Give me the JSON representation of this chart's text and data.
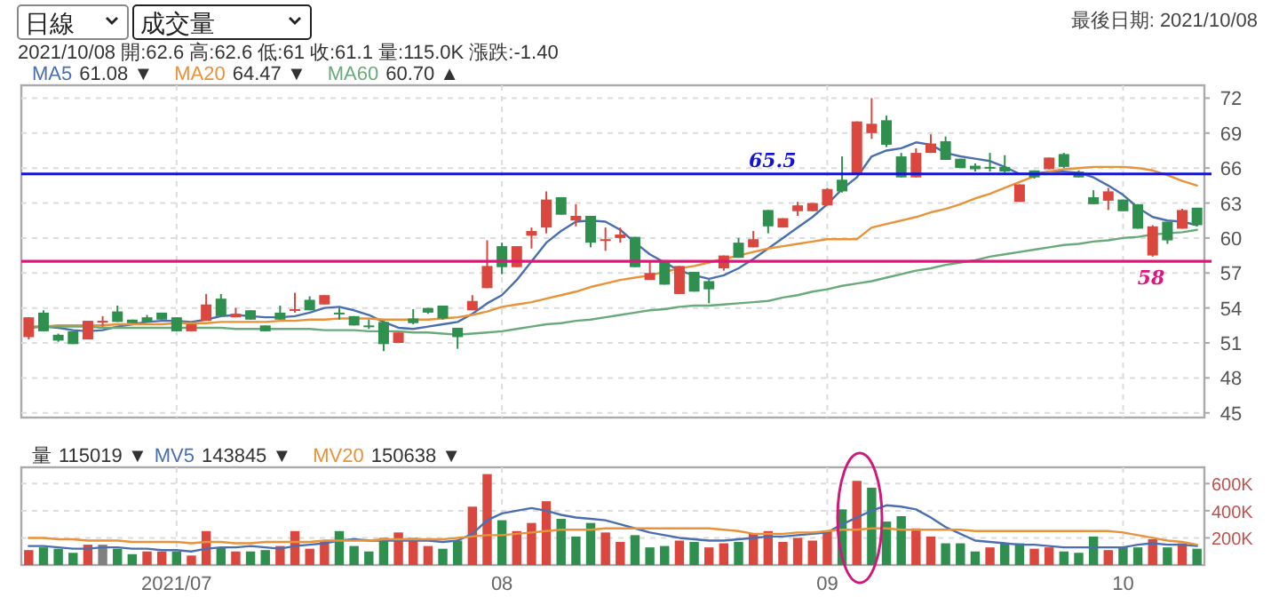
{
  "chart_data": [
    {
      "type": "candlestick",
      "legend": "top left",
      "grid": true,
      "tick_labels": "y",
      "categories": [
        null,
        null,
        null,
        null,
        null,
        null,
        null,
        null,
        null,
        null,
        "2021/07",
        null,
        null,
        null,
        null,
        null,
        null,
        null,
        null,
        null,
        null,
        null,
        null,
        null,
        null,
        null,
        null,
        null,
        null,
        null,
        null,
        null,
        "08",
        null,
        null,
        null,
        null,
        null,
        null,
        null,
        null,
        null,
        null,
        null,
        null,
        null,
        null,
        null,
        null,
        null,
        null,
        null,
        null,
        null,
        "09",
        null,
        null,
        null,
        null,
        null,
        null,
        null,
        null,
        null,
        null,
        null,
        null,
        null,
        null,
        null,
        null,
        null,
        null,
        null,
        "10",
        null,
        null,
        null,
        null,
        null
      ],
      "ohlc": [
        [
          51.5,
          53.2,
          51.3,
          53.2
        ],
        [
          53.6,
          53.8,
          52.0,
          52.0
        ],
        [
          51.7,
          51.8,
          51.1,
          51.2
        ],
        [
          52.0,
          52.0,
          50.9,
          50.9
        ],
        [
          51.3,
          52.9,
          51.3,
          52.9
        ],
        [
          52.8,
          53.3,
          52.4,
          52.9
        ],
        [
          53.7,
          54.2,
          52.8,
          52.8
        ],
        [
          53.0,
          53.0,
          52.7,
          52.7
        ],
        [
          53.2,
          53.4,
          52.8,
          52.8
        ],
        [
          53.6,
          53.6,
          53.0,
          53.0
        ],
        [
          53.2,
          53.2,
          52.0,
          52.0
        ],
        [
          52.0,
          52.6,
          52.0,
          52.6
        ],
        [
          52.9,
          55.2,
          52.9,
          54.3
        ],
        [
          54.8,
          55.2,
          53.3,
          53.3
        ],
        [
          53.2,
          54.0,
          53.2,
          53.5
        ],
        [
          53.8,
          53.8,
          53.0,
          53.0
        ],
        [
          52.5,
          52.5,
          52.0,
          52.0
        ],
        [
          53.6,
          54.2,
          53.0,
          53.0
        ],
        [
          53.8,
          55.3,
          53.6,
          53.9
        ],
        [
          54.7,
          55.0,
          53.8,
          53.8
        ],
        [
          54.3,
          55.1,
          54.3,
          55.1
        ],
        [
          53.6,
          54.0,
          53.0,
          53.5
        ],
        [
          53.3,
          53.3,
          52.5,
          52.5
        ],
        [
          52.5,
          53.0,
          52.2,
          52.4
        ],
        [
          52.8,
          52.9,
          50.3,
          50.9
        ],
        [
          51.0,
          51.9,
          51.0,
          51.9
        ],
        [
          53.1,
          53.9,
          52.6,
          52.7
        ],
        [
          54.0,
          54.0,
          53.5,
          53.6
        ],
        [
          54.2,
          54.2,
          53.0,
          53.1
        ],
        [
          52.3,
          52.3,
          50.5,
          51.5
        ],
        [
          53.8,
          55.1,
          53.8,
          54.6
        ],
        [
          55.7,
          59.8,
          55.7,
          57.6
        ],
        [
          59.3,
          59.6,
          56.9,
          57.5
        ],
        [
          57.5,
          59.3,
          57.5,
          59.3
        ],
        [
          60.2,
          60.9,
          59.1,
          60.6
        ],
        [
          60.9,
          64.0,
          60.4,
          63.3
        ],
        [
          63.5,
          63.5,
          62.0,
          62.0
        ],
        [
          61.5,
          62.9,
          61.0,
          61.9
        ],
        [
          61.9,
          61.9,
          59.2,
          59.6
        ],
        [
          59.8,
          60.9,
          58.9,
          59.9
        ],
        [
          60.0,
          60.9,
          59.6,
          60.3
        ],
        [
          60.1,
          60.1,
          57.5,
          57.5
        ],
        [
          56.4,
          58.0,
          56.4,
          57.0
        ],
        [
          58.1,
          58.1,
          56.0,
          56.0
        ],
        [
          55.2,
          57.6,
          55.2,
          57.6
        ],
        [
          57.1,
          57.1,
          55.4,
          55.4
        ],
        [
          56.3,
          56.4,
          54.4,
          55.6
        ],
        [
          57.4,
          58.5,
          57.2,
          58.5
        ],
        [
          59.6,
          60.0,
          58.3,
          58.3
        ],
        [
          59.2,
          60.6,
          59.2,
          59.9
        ],
        [
          62.4,
          62.4,
          60.4,
          61.0
        ],
        [
          60.9,
          61.7,
          60.9,
          61.7
        ],
        [
          62.3,
          63.1,
          61.9,
          62.8
        ],
        [
          62.3,
          63.0,
          62.3,
          63.0
        ],
        [
          62.8,
          64.3,
          62.8,
          64.2
        ],
        [
          65.0,
          67.0,
          63.9,
          64.0
        ],
        [
          65.5,
          70.0,
          65.5,
          70.0
        ],
        [
          69.0,
          72.0,
          68.5,
          69.8
        ],
        [
          70.1,
          70.5,
          67.8,
          68.0
        ],
        [
          67.0,
          67.3,
          65.2,
          65.2
        ],
        [
          65.2,
          67.7,
          65.2,
          67.3
        ],
        [
          67.3,
          68.9,
          67.3,
          68.1
        ],
        [
          68.3,
          68.7,
          66.7,
          66.7
        ],
        [
          66.8,
          66.8,
          66.0,
          66.0
        ],
        [
          66.2,
          66.4,
          65.7,
          65.9
        ],
        [
          66.1,
          67.3,
          65.7,
          66.0
        ],
        [
          66.1,
          67.1,
          65.6,
          65.7
        ],
        [
          63.1,
          64.6,
          63.1,
          64.6
        ],
        [
          65.8,
          65.8,
          65.1,
          65.2
        ],
        [
          65.9,
          66.9,
          65.9,
          66.9
        ],
        [
          67.2,
          67.3,
          66.0,
          66.1
        ],
        [
          65.7,
          65.8,
          65.2,
          65.2
        ],
        [
          63.5,
          64.1,
          62.9,
          62.9
        ],
        [
          63.2,
          64.3,
          62.4,
          64.0
        ],
        [
          63.3,
          63.3,
          62.3,
          62.3
        ],
        [
          62.9,
          62.9,
          60.8,
          60.8
        ],
        [
          58.5,
          61.1,
          58.4,
          61.0
        ],
        [
          61.4,
          61.4,
          59.5,
          59.8
        ],
        [
          60.8,
          62.5,
          60.8,
          62.4
        ],
        [
          62.6,
          62.6,
          61.0,
          61.1
        ]
      ],
      "colors": [
        "#d9473f",
        "#2f8f4e",
        "#2f8f4e",
        "#2f8f4e",
        "#d9473f",
        "#d9473f",
        "#2f8f4e",
        "#2f8f4e",
        "#2f8f4e",
        "#2f8f4e",
        "#2f8f4e",
        "#d9473f",
        "#d9473f",
        "#2f8f4e",
        "#d9473f",
        "#2f8f4e",
        "#2f8f4e",
        "#2f8f4e",
        "#d9473f",
        "#2f8f4e",
        "#d9473f",
        "#2f8f4e",
        "#2f8f4e",
        "#2f8f4e",
        "#2f8f4e",
        "#d9473f",
        "#2f8f4e",
        "#2f8f4e",
        "#2f8f4e",
        "#2f8f4e",
        "#d9473f",
        "#d9473f",
        "#2f8f4e",
        "#d9473f",
        "#d9473f",
        "#d9473f",
        "#2f8f4e",
        "#d9473f",
        "#2f8f4e",
        "#d9473f",
        "#d9473f",
        "#2f8f4e",
        "#d9473f",
        "#2f8f4e",
        "#d9473f",
        "#2f8f4e",
        "#2f8f4e",
        "#d9473f",
        "#2f8f4e",
        "#d9473f",
        "#2f8f4e",
        "#d9473f",
        "#d9473f",
        "#d9473f",
        "#d9473f",
        "#2f8f4e",
        "#d9473f",
        "#d9473f",
        "#2f8f4e",
        "#2f8f4e",
        "#d9473f",
        "#d9473f",
        "#2f8f4e",
        "#2f8f4e",
        "#2f8f4e",
        "#2f8f4e",
        "#2f8f4e",
        "#d9473f",
        "#2f8f4e",
        "#d9473f",
        "#2f8f4e",
        "#2f8f4e",
        "#2f8f4e",
        "#d9473f",
        "#2f8f4e",
        "#2f8f4e",
        "#d9473f",
        "#2f8f4e",
        "#d9473f",
        "#2f8f4e"
      ],
      "series": [
        {
          "name": "MA5",
          "type": "line",
          "color": "#4a6fb0",
          "values": [
            52.3,
            52.4,
            52.3,
            52.1,
            52.0,
            52.1,
            52.4,
            52.6,
            52.8,
            52.9,
            52.9,
            52.8,
            53.0,
            53.3,
            53.4,
            53.3,
            53.2,
            53.2,
            53.3,
            53.6,
            54.0,
            54.1,
            53.8,
            53.4,
            52.8,
            52.3,
            52.2,
            52.4,
            52.6,
            52.8,
            53.5,
            54.4,
            55.1,
            56.4,
            58.0,
            59.6,
            60.6,
            61.4,
            61.5,
            61.4,
            60.7,
            59.6,
            58.6,
            57.9,
            57.2,
            56.8,
            56.5,
            56.8,
            57.4,
            58.2,
            59.1,
            60.0,
            60.9,
            61.8,
            62.9,
            64.2,
            65.2,
            67.0,
            67.5,
            67.7,
            68.2,
            68.0,
            67.3,
            67.0,
            66.8,
            66.6,
            66.1,
            65.5,
            65.5,
            65.7,
            65.7,
            65.6,
            65.2,
            64.5,
            63.7,
            62.6,
            61.8,
            61.5,
            61.4,
            61.1
          ]
        },
        {
          "name": "MA20",
          "type": "line",
          "color": "#e8923a",
          "values": [
            52.4,
            52.4,
            52.5,
            52.5,
            52.5,
            52.5,
            52.6,
            52.6,
            52.6,
            52.6,
            52.7,
            52.7,
            52.7,
            52.8,
            52.8,
            52.8,
            52.8,
            52.9,
            52.9,
            53.0,
            53.0,
            53.1,
            53.1,
            53.1,
            53.0,
            53.0,
            53.0,
            53.0,
            53.1,
            53.2,
            53.4,
            53.7,
            54.1,
            54.3,
            54.5,
            54.8,
            55.1,
            55.4,
            55.8,
            56.1,
            56.4,
            56.6,
            56.8,
            57.1,
            57.4,
            57.6,
            57.9,
            58.2,
            58.5,
            58.8,
            59.1,
            59.3,
            59.5,
            59.7,
            59.9,
            59.9,
            59.9,
            60.9,
            61.2,
            61.5,
            61.8,
            62.2,
            62.5,
            62.9,
            63.4,
            63.8,
            64.3,
            64.8,
            65.3,
            65.7,
            65.9,
            66.0,
            66.1,
            66.1,
            66.1,
            66.0,
            65.8,
            65.4,
            64.9,
            64.5
          ]
        },
        {
          "name": "MA60",
          "type": "line",
          "color": "#6aaa7a",
          "values": [
            52.4,
            52.4,
            52.4,
            52.4,
            52.4,
            52.3,
            52.3,
            52.3,
            52.3,
            52.3,
            52.3,
            52.3,
            52.3,
            52.3,
            52.2,
            52.2,
            52.2,
            52.2,
            52.2,
            52.2,
            52.1,
            52.1,
            52.1,
            52.0,
            52.0,
            52.0,
            51.9,
            51.9,
            51.8,
            51.7,
            51.8,
            51.9,
            52.0,
            52.2,
            52.4,
            52.6,
            52.7,
            52.9,
            53.0,
            53.2,
            53.4,
            53.6,
            53.8,
            53.9,
            54.1,
            54.2,
            54.2,
            54.3,
            54.4,
            54.5,
            54.6,
            54.9,
            55.1,
            55.4,
            55.6,
            55.9,
            56.1,
            56.3,
            56.6,
            56.9,
            57.2,
            57.4,
            57.7,
            57.9,
            58.1,
            58.4,
            58.6,
            58.8,
            59.0,
            59.2,
            59.4,
            59.5,
            59.7,
            59.8,
            60.0,
            60.1,
            60.3,
            60.4,
            60.5,
            60.7
          ]
        }
      ],
      "ylim": [
        44.6,
        73.1
      ],
      "yticks": [
        45,
        48,
        51,
        54,
        57,
        60,
        63,
        66,
        69,
        72
      ],
      "ref_lines": [
        {
          "axis": "y",
          "value": 65.5,
          "label": "65.5",
          "color": "#1414d2"
        },
        {
          "axis": "y",
          "value": 58,
          "label": "58",
          "color": "#e0147a"
        }
      ],
      "annotations": [
        "日線",
        "成交量",
        "2021/10/08 開:62.6 高:62.6 低:61 收:61.1 量:115.0K 漲跌:-1.40",
        "最後日期: 2021/10/08",
        "61.08 ▼",
        "64.47 ▼",
        "60.70 ▲"
      ]
    },
    {
      "type": "bar",
      "legend": "top left",
      "grid": true,
      "categories": [
        null,
        null,
        null,
        null,
        null,
        null,
        null,
        null,
        null,
        null,
        "2021/07",
        null,
        null,
        null,
        null,
        null,
        null,
        null,
        null,
        null,
        null,
        null,
        null,
        null,
        null,
        null,
        null,
        null,
        null,
        null,
        null,
        null,
        "08",
        null,
        null,
        null,
        null,
        null,
        null,
        null,
        null,
        null,
        null,
        null,
        null,
        null,
        null,
        null,
        null,
        null,
        null,
        null,
        null,
        null,
        "09",
        null,
        null,
        null,
        null,
        null,
        null,
        null,
        null,
        null,
        null,
        null,
        null,
        null,
        null,
        null,
        null,
        null,
        null,
        null,
        "10",
        null,
        null,
        null,
        null,
        null
      ],
      "series": [
        {
          "type": "bar",
          "colors": [
            "#d9473f",
            "#2f8f4e",
            "#2f8f4e",
            "#2f8f4e",
            "#d9473f",
            "#808080",
            "#2f8f4e",
            "#2f8f4e",
            "#d9473f",
            "#d9473f",
            "#2f8f4e",
            "#d9473f",
            "#d9473f",
            "#2f8f4e",
            "#d9473f",
            "#2f8f4e",
            "#2f8f4e",
            "#d9473f",
            "#d9473f",
            "#d9473f",
            "#d9473f",
            "#2f8f4e",
            "#2f8f4e",
            "#2f8f4e",
            "#2f8f4e",
            "#d9473f",
            "#d9473f",
            "#d9473f",
            "#2f8f4e",
            "#2f8f4e",
            "#d9473f",
            "#d9473f",
            "#2f8f4e",
            "#d9473f",
            "#d9473f",
            "#d9473f",
            "#2f8f4e",
            "#2f8f4e",
            "#2f8f4e",
            "#d9473f",
            "#d9473f",
            "#2f8f4e",
            "#2f8f4e",
            "#2f8f4e",
            "#d9473f",
            "#2f8f4e",
            "#d9473f",
            "#d9473f",
            "#2f8f4e",
            "#d9473f",
            "#d9473f",
            "#d9473f",
            "#d9473f",
            "#d9473f",
            "#d9473f",
            "#2f8f4e",
            "#d9473f",
            "#2f8f4e",
            "#2f8f4e",
            "#2f8f4e",
            "#d9473f",
            "#d9473f",
            "#2f8f4e",
            "#2f8f4e",
            "#2f8f4e",
            "#d9473f",
            "#2f8f4e",
            "#2f8f4e",
            "#d9473f",
            "#d9473f",
            "#2f8f4e",
            "#2f8f4e",
            "#2f8f4e",
            "#d9473f",
            "#2f8f4e",
            "#2f8f4e",
            "#d9473f",
            "#2f8f4e",
            "#d9473f",
            "#2f8f4e"
          ],
          "values": [
            110000,
            130000,
            120000,
            90000,
            150000,
            150000,
            120000,
            80000,
            100000,
            100000,
            100000,
            70000,
            250000,
            130000,
            100000,
            100000,
            110000,
            140000,
            250000,
            120000,
            180000,
            250000,
            140000,
            100000,
            200000,
            240000,
            200000,
            140000,
            120000,
            180000,
            430000,
            670000,
            330000,
            250000,
            310000,
            470000,
            340000,
            210000,
            310000,
            240000,
            170000,
            220000,
            130000,
            140000,
            180000,
            170000,
            130000,
            160000,
            170000,
            230000,
            250000,
            170000,
            200000,
            180000,
            250000,
            410000,
            620000,
            570000,
            320000,
            360000,
            270000,
            210000,
            160000,
            160000,
            100000,
            130000,
            160000,
            160000,
            120000,
            130000,
            100000,
            90000,
            210000,
            110000,
            130000,
            130000,
            190000,
            130000,
            160000,
            120000
          ]
        },
        {
          "name": "MV5",
          "type": "line",
          "color": "#4a6fb0",
          "values": [
            140000,
            140000,
            130000,
            120000,
            120000,
            130000,
            130000,
            120000,
            120000,
            110000,
            110000,
            100000,
            120000,
            130000,
            130000,
            140000,
            130000,
            120000,
            140000,
            150000,
            160000,
            180000,
            190000,
            180000,
            180000,
            180000,
            180000,
            180000,
            170000,
            180000,
            230000,
            330000,
            380000,
            400000,
            420000,
            400000,
            370000,
            350000,
            340000,
            330000,
            300000,
            270000,
            240000,
            220000,
            200000,
            190000,
            180000,
            180000,
            190000,
            200000,
            210000,
            210000,
            220000,
            230000,
            240000,
            300000,
            350000,
            400000,
            440000,
            430000,
            410000,
            350000,
            280000,
            230000,
            180000,
            170000,
            160000,
            150000,
            150000,
            140000,
            130000,
            130000,
            130000,
            130000,
            130000,
            150000,
            160000,
            150000,
            150000,
            140000
          ]
        },
        {
          "name": "MV20",
          "type": "line",
          "color": "#e8923a",
          "values": [
            200000,
            200000,
            190000,
            190000,
            180000,
            180000,
            180000,
            170000,
            170000,
            170000,
            170000,
            160000,
            170000,
            170000,
            160000,
            160000,
            170000,
            170000,
            170000,
            170000,
            180000,
            180000,
            180000,
            180000,
            190000,
            190000,
            190000,
            190000,
            190000,
            200000,
            210000,
            220000,
            220000,
            230000,
            240000,
            250000,
            260000,
            260000,
            260000,
            270000,
            270000,
            270000,
            270000,
            270000,
            270000,
            270000,
            270000,
            260000,
            250000,
            230000,
            230000,
            230000,
            240000,
            240000,
            250000,
            260000,
            260000,
            270000,
            270000,
            260000,
            260000,
            260000,
            260000,
            260000,
            250000,
            250000,
            250000,
            250000,
            250000,
            250000,
            250000,
            250000,
            250000,
            250000,
            240000,
            220000,
            200000,
            180000,
            170000,
            150000
          ]
        }
      ],
      "ylim": [
        0,
        720000
      ],
      "yticks": [
        {
          "value": 200000,
          "label": "200K"
        },
        {
          "value": 400000,
          "label": "400K"
        },
        {
          "value": 600000,
          "label": "600K"
        }
      ],
      "annotations": [
        "量",
        "115019 ▼",
        "143845 ▼",
        "150638 ▼"
      ]
    }
  ]
}
